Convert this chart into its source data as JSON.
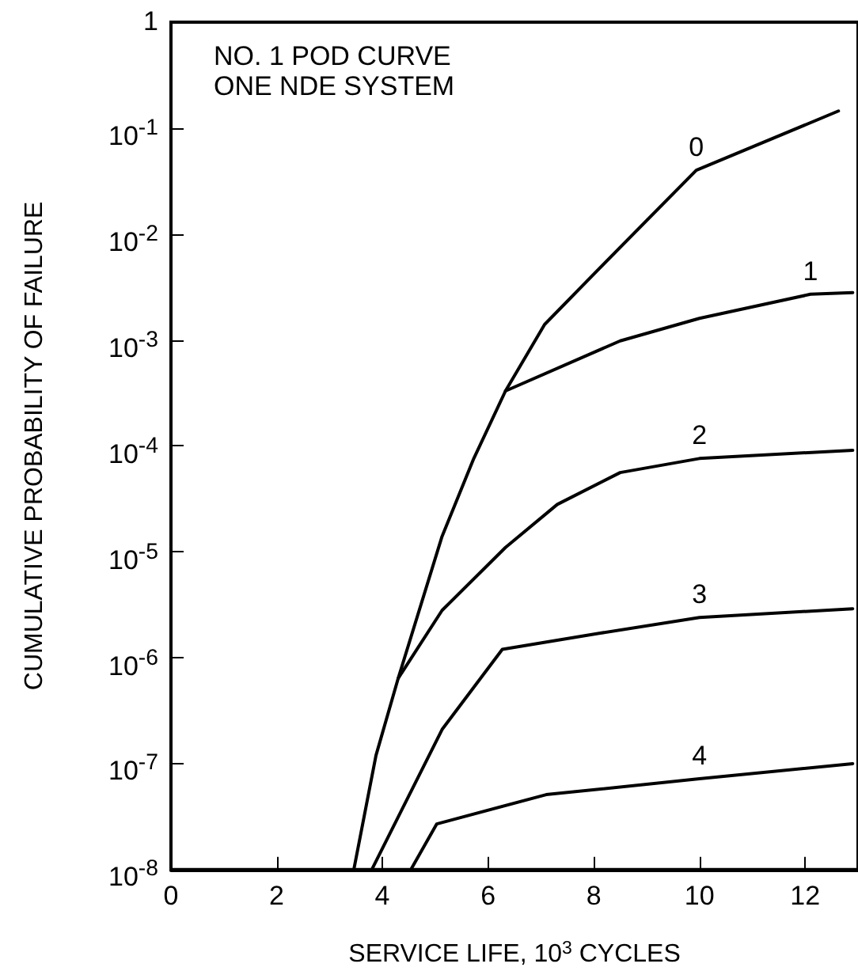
{
  "chart_data": {
    "type": "line",
    "title": "NO. 1 POD CURVE",
    "subtitle": "ONE NDE SYSTEM",
    "xlabel": "SERVICE LIFE, 10$^{3}$ CYCLES",
    "ylabel": "CUMULATIVE PROBABILITY OF FAILURE",
    "log": "y",
    "grid": false,
    "legend": false,
    "marker": "none",
    "line_style": "solid",
    "xlim": [
      0,
      13
    ],
    "xticks": [
      0,
      2,
      4,
      6,
      8,
      10,
      12
    ],
    "ylim": [
      1e-08,
      1
    ],
    "yticks": [
      {
        "value": 1e-08,
        "label": "10$^{-8}$"
      },
      {
        "value": 1e-07,
        "label": "10$^{-7}$"
      },
      {
        "value": 1e-06,
        "label": "10$^{-6}$"
      },
      {
        "value": 1e-05,
        "label": "10$^{-5}$"
      },
      {
        "value": 0.0001,
        "label": "10$^{-4}$"
      },
      {
        "value": 0.001,
        "label": "10$^{-3}$"
      },
      {
        "value": 0.01,
        "label": "10$^{-2}$"
      },
      {
        "value": 0.1,
        "label": "10$^{-1}$"
      },
      1
    ],
    "series": [
      {
        "name": "0",
        "color": "#000000",
        "x": [
          3.46,
          3.88,
          4.3,
          5.13,
          5.73,
          6.33,
          7.07,
          8.1,
          9.94,
          12.63
        ],
        "values": [
          1e-08,
          1.2e-07,
          6.4e-07,
          1.4e-05,
          7.6e-05,
          0.00033,
          0.0014,
          0.0047,
          0.04,
          0.145
        ]
      },
      {
        "name": "1",
        "color": "#000000",
        "x": [
          6.33,
          8.5,
          10,
          12.1,
          12.9
        ],
        "values": [
          0.00033,
          0.00098,
          0.0016,
          0.0027,
          0.0028
        ]
      },
      {
        "name": "2",
        "color": "#000000",
        "x": [
          4.3,
          5.13,
          6.33,
          7.31,
          8.5,
          10,
          12.9
        ],
        "values": [
          6.4e-07,
          2.8e-06,
          1.1e-05,
          2.8e-05,
          5.6e-05,
          7.6e-05,
          9.1e-05
        ]
      },
      {
        "name": "3",
        "color": "#000000",
        "x": [
          3.8,
          5.13,
          6.27,
          8.1,
          10,
          12.9
        ],
        "values": [
          1e-08,
          2.1e-07,
          1.2e-06,
          1.7e-06,
          2.4e-06,
          2.9e-06
        ]
      },
      {
        "name": "4",
        "color": "#000000",
        "x": [
          4.54,
          5.03,
          7.1,
          10,
          12.9
        ],
        "values": [
          1e-08,
          2.7e-08,
          5.1e-08,
          7.2e-08,
          1e-07
        ]
      }
    ]
  }
}
